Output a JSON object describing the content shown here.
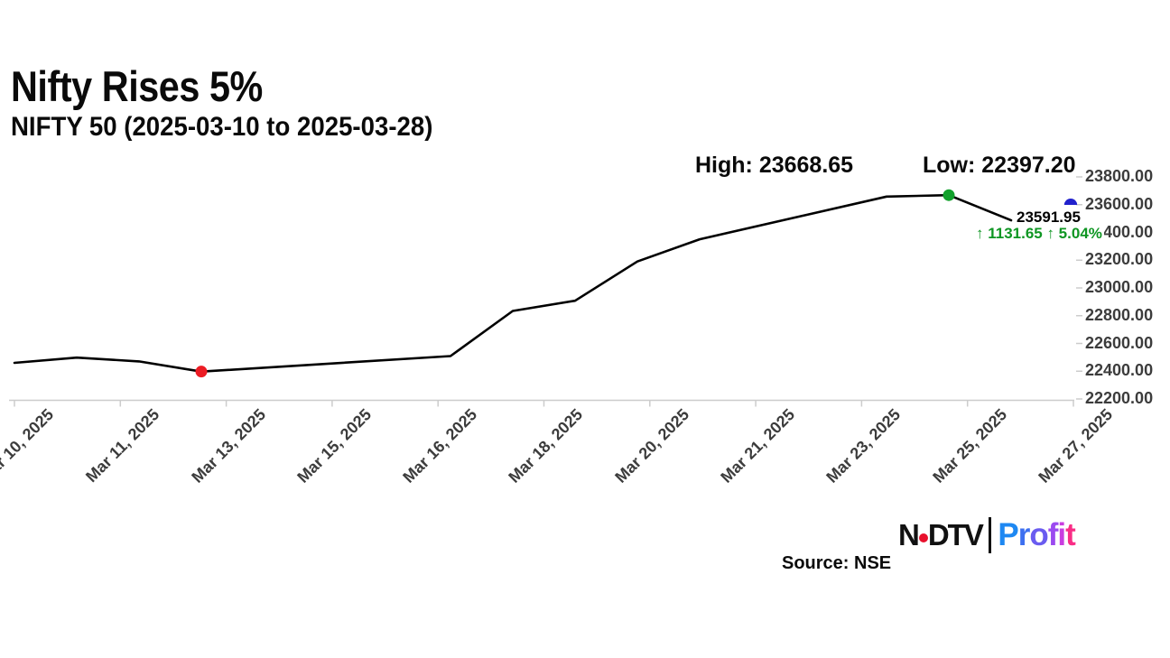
{
  "header": {
    "title": "Nifty Rises 5%",
    "subtitle": "NIFTY 50 (2025-03-10 to 2025-03-28)"
  },
  "annotations": {
    "high": "High: 23668.65",
    "low": "Low: 22397.20",
    "last_value": "23591.95",
    "change": "↑ 1131.65 ↑ 5.04%"
  },
  "footer": {
    "source": "Source: NSE",
    "logo": {
      "ndtv_n": "N",
      "ndtv_dtv": "DTV",
      "profit": "Profit",
      "profit_letter_colors": [
        "#1e88f2",
        "#3d6ff0",
        "#6a5cf0",
        "#9b4af0",
        "#c93ee0",
        "#f92d86"
      ],
      "ndtv_dot_color": "#e8112d"
    }
  },
  "chart_data": {
    "type": "line",
    "title": "Nifty Rises 5%",
    "subtitle": "NIFTY 50 (2025-03-10 to 2025-03-28)",
    "x": [
      "2025-03-10",
      "2025-03-11",
      "2025-03-12",
      "2025-03-13",
      "2025-03-17",
      "2025-03-18",
      "2025-03-19",
      "2025-03-20",
      "2025-03-21",
      "2025-03-24",
      "2025-03-25",
      "2025-03-26"
    ],
    "x_day_of_month": [
      10,
      11,
      12,
      13,
      17,
      18,
      19,
      20,
      21,
      24,
      25,
      26
    ],
    "values": [
      22460.3,
      22497.9,
      22470.5,
      22397.2,
      22508.65,
      22834.3,
      22907.6,
      23190.65,
      23350.4,
      23658.35,
      23668.65,
      23486.85
    ],
    "high": 23668.65,
    "low": 22397.2,
    "last_close_label": 23591.95,
    "change_abs": 1131.65,
    "change_pct": 5.04,
    "ylim": [
      22200,
      23800
    ],
    "y_step": 200,
    "y_tick_labels": [
      "23800.00",
      "23600.00",
      "23400.00",
      "23200.00",
      "23000.00",
      "22800.00",
      "22600.00",
      "22400.00",
      "22200.00"
    ],
    "x_tick_labels": [
      "Mar 10, 2025",
      "Mar 11, 2025",
      "Mar 13, 2025",
      "Mar 15, 2025",
      "Mar 16, 2025",
      "Mar 18, 2025",
      "Mar 20, 2025",
      "Mar 21, 2025",
      "Mar 23, 2025",
      "Mar 25, 2025",
      "Mar 27, 2025"
    ],
    "grid": false,
    "legend": false,
    "line_color": "#000000",
    "low_marker_color": "#ec1c24",
    "high_marker_color": "#12a12c",
    "end_marker_color": "#2121cc",
    "axis_color": "#cccccc",
    "tick_label_color": "#3c3c3c",
    "change_text_color": "#0f9623"
  }
}
